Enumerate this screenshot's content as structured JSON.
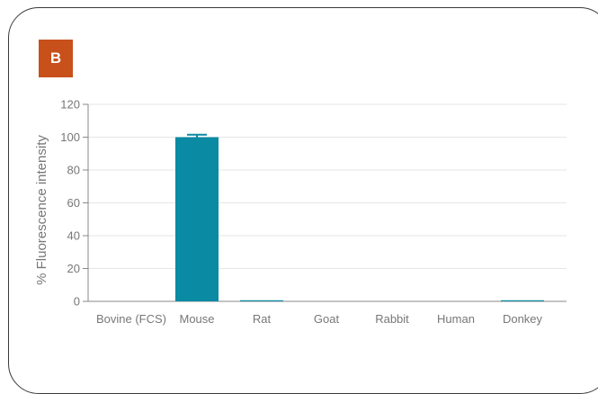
{
  "panel": {
    "label": "B",
    "badge_color": "#c8501a"
  },
  "chart_data": {
    "type": "bar",
    "title": "",
    "xlabel": "",
    "ylabel": "% Fluorescence intensity",
    "categories": [
      "Bovine (FCS)",
      "Mouse",
      "Rat",
      "Goat",
      "Rabbit",
      "Human",
      "Donkey"
    ],
    "values": [
      0,
      100,
      0.5,
      0,
      0,
      0,
      0.5
    ],
    "errors": [
      0,
      1.5,
      0,
      0,
      0,
      0,
      0
    ],
    "ylim": [
      0,
      120
    ],
    "yticks": [
      0,
      20,
      40,
      60,
      80,
      100,
      120
    ],
    "grid": true,
    "bar_color": "#0a8aa3"
  }
}
